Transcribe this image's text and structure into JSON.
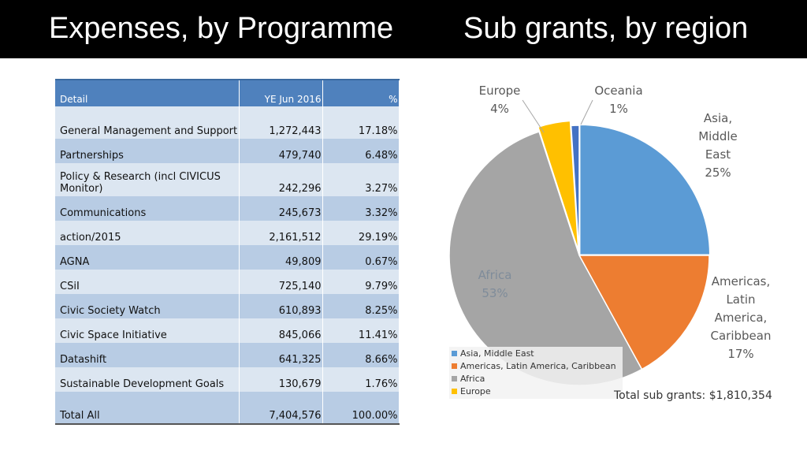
{
  "header": {
    "left_title": "Expenses, by Programme",
    "right_title": "Sub grants, by region"
  },
  "table": {
    "columns": [
      "Detail",
      "YE Jun 2016",
      "%"
    ],
    "rows": [
      {
        "detail": "General Management and Support",
        "amount": "1,272,443",
        "pct": "17.18%"
      },
      {
        "detail": "Partnerships",
        "amount": "479,740",
        "pct": "6.48%"
      },
      {
        "detail": "Policy & Research (incl CIVICUS Monitor)",
        "amount": "242,296",
        "pct": "3.27%"
      },
      {
        "detail": "Communications",
        "amount": "245,673",
        "pct": "3.32%"
      },
      {
        "detail": "action/2015",
        "amount": "2,161,512",
        "pct": "29.19%"
      },
      {
        "detail": "AGNA",
        "amount": "49,809",
        "pct": "0.67%"
      },
      {
        "detail": "CSiI",
        "amount": "725,140",
        "pct": "9.79%"
      },
      {
        "detail": "Civic Society Watch",
        "amount": "610,893",
        "pct": "8.25%"
      },
      {
        "detail": "Civic Space Initiative",
        "amount": "845,066",
        "pct": "11.41%"
      },
      {
        "detail": "Datashift",
        "amount": "641,325",
        "pct": "8.66%"
      },
      {
        "detail": "Sustainable Development Goals",
        "amount": "130,679",
        "pct": "1.76%"
      }
    ],
    "total": {
      "detail": "Total All",
      "amount": "7,404,576",
      "pct": "100.00%"
    }
  },
  "chart_data": {
    "type": "pie",
    "title": "Sub grants, by region",
    "slices": [
      {
        "label": "Asia, Middle East",
        "display_lines": [
          "Asia,",
          "Middle",
          "East",
          "25%"
        ],
        "value": 25,
        "color": "#5b9bd5"
      },
      {
        "label": "Americas, Latin America, Caribbean",
        "display_lines": [
          "Americas,",
          "Latin",
          "America,",
          "Caribbean",
          "17%"
        ],
        "value": 17,
        "color": "#ed7d31"
      },
      {
        "label": "Africa",
        "display_lines": [
          "Africa",
          "53%"
        ],
        "value": 53,
        "color": "#a5a5a5"
      },
      {
        "label": "Europe",
        "display_lines": [
          "Europe",
          "4%"
        ],
        "value": 4,
        "color": "#ffc000"
      },
      {
        "label": "Oceania",
        "display_lines": [
          "Oceania",
          "1%"
        ],
        "value": 1,
        "color": "#4472c4"
      }
    ],
    "legend": [
      "Asia, Middle East",
      "Americas, Latin America, Caribbean",
      "Africa",
      "Europe"
    ],
    "legend_position": "bottom-left",
    "note": "Total sub grants: $1,810,354"
  }
}
